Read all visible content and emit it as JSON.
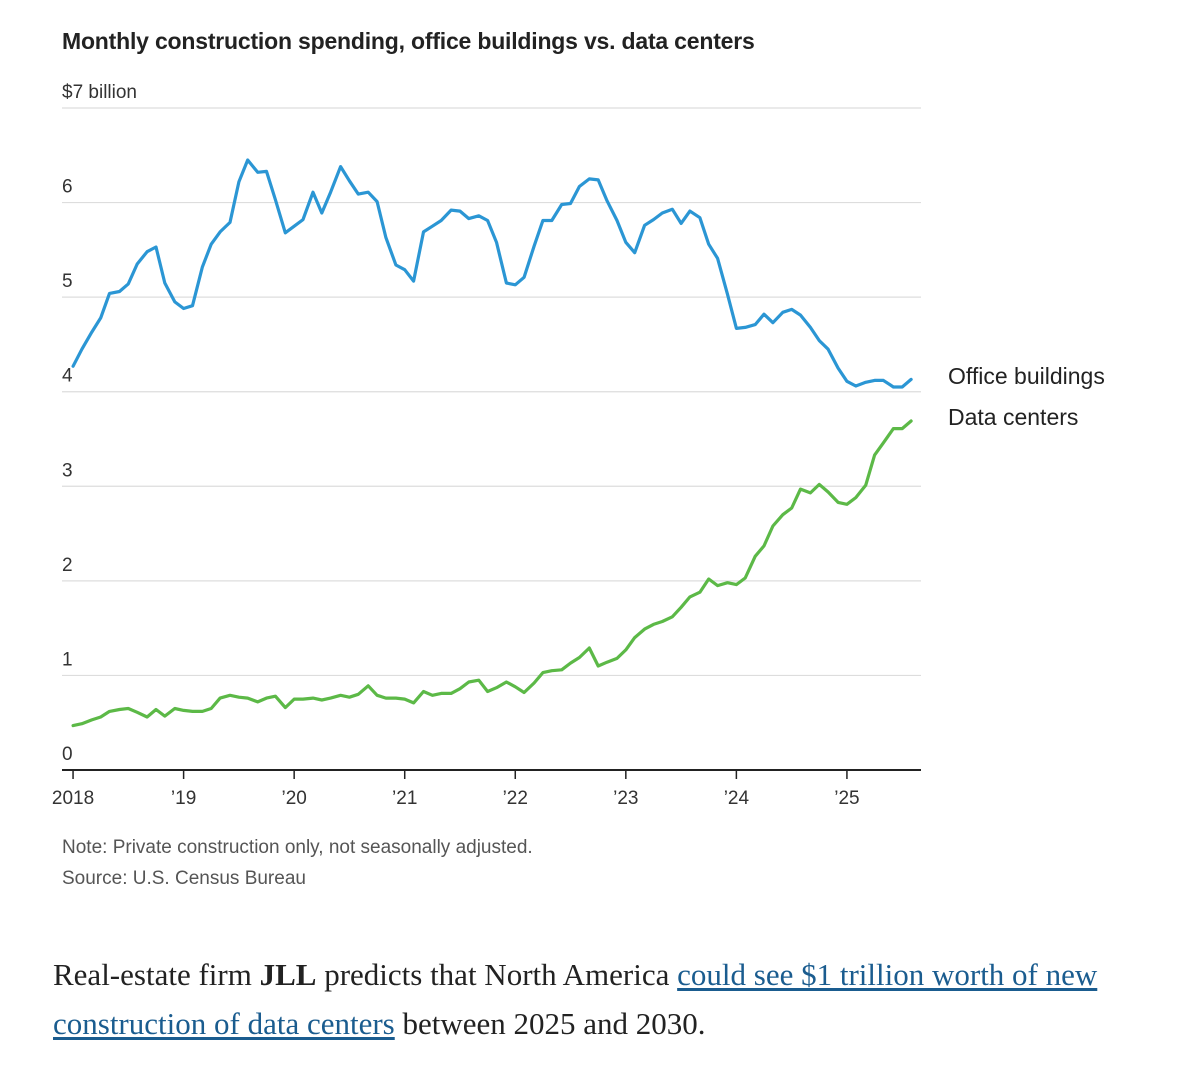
{
  "title": "Monthly construction spending, office buildings vs. data centers",
  "note": "Note: Private construction only, not seasonally adjusted.",
  "source": "Source: U.S. Census Bureau",
  "article": {
    "before": "Real-estate firm ",
    "bold": "JLL",
    "middle": " predicts that North America ",
    "link_text": "could see $1 trillion worth of new construction of data centers",
    "after": " between 2025 and 2030."
  },
  "colors": {
    "office": "#2b96d4",
    "data_centers": "#5cb947",
    "grid": "#dddddd",
    "axis": "#222222",
    "link": "#1a5c8f"
  },
  "chart_data": {
    "type": "line",
    "title": "Monthly construction spending, office buildings vs. data centers",
    "xlabel": "",
    "ylabel": "",
    "ylim": [
      0,
      7
    ],
    "y_ticks": [
      {
        "value": 0,
        "label": "0"
      },
      {
        "value": 1,
        "label": "1"
      },
      {
        "value": 2,
        "label": "2"
      },
      {
        "value": 3,
        "label": "3"
      },
      {
        "value": 4,
        "label": "4"
      },
      {
        "value": 5,
        "label": "5"
      },
      {
        "value": 6,
        "label": "6"
      },
      {
        "value": 7,
        "label": "$7 billion"
      }
    ],
    "x_ticks": [
      {
        "value": 2018,
        "label": "2018"
      },
      {
        "value": 2019,
        "label": "’19"
      },
      {
        "value": 2020,
        "label": "’20"
      },
      {
        "value": 2021,
        "label": "’21"
      },
      {
        "value": 2022,
        "label": "’22"
      },
      {
        "value": 2023,
        "label": "’23"
      },
      {
        "value": 2024,
        "label": "’24"
      },
      {
        "value": 2025,
        "label": "’25"
      }
    ],
    "xlim": [
      2017.9,
      2025.67
    ],
    "grid": true,
    "legend": "direct labels at right end of lines",
    "series": [
      {
        "name": "Office buildings",
        "color": "#2b96d4",
        "points": [
          [
            2018.0,
            4.27
          ],
          [
            2018.08,
            4.45
          ],
          [
            2018.17,
            4.63
          ],
          [
            2018.25,
            4.78
          ],
          [
            2018.33,
            5.04
          ],
          [
            2018.42,
            5.06
          ],
          [
            2018.5,
            5.14
          ],
          [
            2018.58,
            5.35
          ],
          [
            2018.67,
            5.48
          ],
          [
            2018.75,
            5.53
          ],
          [
            2018.83,
            5.15
          ],
          [
            2018.92,
            4.95
          ],
          [
            2019.0,
            4.88
          ],
          [
            2019.08,
            4.91
          ],
          [
            2019.17,
            5.32
          ],
          [
            2019.25,
            5.56
          ],
          [
            2019.33,
            5.69
          ],
          [
            2019.42,
            5.79
          ],
          [
            2019.5,
            6.22
          ],
          [
            2019.58,
            6.45
          ],
          [
            2019.67,
            6.32
          ],
          [
            2019.75,
            6.33
          ],
          [
            2019.83,
            6.03
          ],
          [
            2019.92,
            5.68
          ],
          [
            2020.0,
            5.75
          ],
          [
            2020.08,
            5.82
          ],
          [
            2020.17,
            6.11
          ],
          [
            2020.25,
            5.89
          ],
          [
            2020.33,
            6.11
          ],
          [
            2020.42,
            6.38
          ],
          [
            2020.5,
            6.23
          ],
          [
            2020.58,
            6.09
          ],
          [
            2020.67,
            6.11
          ],
          [
            2020.75,
            6.01
          ],
          [
            2020.83,
            5.63
          ],
          [
            2020.92,
            5.34
          ],
          [
            2021.0,
            5.29
          ],
          [
            2021.08,
            5.17
          ],
          [
            2021.17,
            5.69
          ],
          [
            2021.25,
            5.75
          ],
          [
            2021.33,
            5.81
          ],
          [
            2021.42,
            5.92
          ],
          [
            2021.5,
            5.91
          ],
          [
            2021.58,
            5.83
          ],
          [
            2021.67,
            5.86
          ],
          [
            2021.75,
            5.81
          ],
          [
            2021.83,
            5.58
          ],
          [
            2021.92,
            5.15
          ],
          [
            2022.0,
            5.13
          ],
          [
            2022.08,
            5.21
          ],
          [
            2022.17,
            5.54
          ],
          [
            2022.25,
            5.81
          ],
          [
            2022.33,
            5.81
          ],
          [
            2022.42,
            5.98
          ],
          [
            2022.5,
            5.99
          ],
          [
            2022.58,
            6.17
          ],
          [
            2022.67,
            6.25
          ],
          [
            2022.75,
            6.24
          ],
          [
            2022.83,
            6.02
          ],
          [
            2022.92,
            5.81
          ],
          [
            2023.0,
            5.58
          ],
          [
            2023.08,
            5.47
          ],
          [
            2023.17,
            5.76
          ],
          [
            2023.25,
            5.82
          ],
          [
            2023.33,
            5.89
          ],
          [
            2023.42,
            5.93
          ],
          [
            2023.5,
            5.78
          ],
          [
            2023.58,
            5.91
          ],
          [
            2023.67,
            5.84
          ],
          [
            2023.75,
            5.56
          ],
          [
            2023.83,
            5.41
          ],
          [
            2023.92,
            5.03
          ],
          [
            2024.0,
            4.67
          ],
          [
            2024.08,
            4.68
          ],
          [
            2024.17,
            4.71
          ],
          [
            2024.25,
            4.82
          ],
          [
            2024.33,
            4.73
          ],
          [
            2024.42,
            4.84
          ],
          [
            2024.5,
            4.87
          ],
          [
            2024.58,
            4.81
          ],
          [
            2024.67,
            4.68
          ],
          [
            2024.75,
            4.54
          ],
          [
            2024.83,
            4.45
          ],
          [
            2024.92,
            4.25
          ],
          [
            2025.0,
            4.11
          ],
          [
            2025.08,
            4.06
          ],
          [
            2025.17,
            4.1
          ],
          [
            2025.25,
            4.12
          ],
          [
            2025.33,
            4.12
          ],
          [
            2025.42,
            4.05
          ],
          [
            2025.5,
            4.05
          ],
          [
            2025.58,
            4.13
          ]
        ]
      },
      {
        "name": "Data centers",
        "color": "#5cb947",
        "points": [
          [
            2018.0,
            0.47
          ],
          [
            2018.08,
            0.49
          ],
          [
            2018.17,
            0.53
          ],
          [
            2018.25,
            0.56
          ],
          [
            2018.33,
            0.62
          ],
          [
            2018.42,
            0.64
          ],
          [
            2018.5,
            0.65
          ],
          [
            2018.58,
            0.61
          ],
          [
            2018.67,
            0.56
          ],
          [
            2018.75,
            0.64
          ],
          [
            2018.83,
            0.57
          ],
          [
            2018.92,
            0.65
          ],
          [
            2019.0,
            0.63
          ],
          [
            2019.08,
            0.62
          ],
          [
            2019.17,
            0.62
          ],
          [
            2019.25,
            0.65
          ],
          [
            2019.33,
            0.76
          ],
          [
            2019.42,
            0.79
          ],
          [
            2019.5,
            0.77
          ],
          [
            2019.58,
            0.76
          ],
          [
            2019.67,
            0.72
          ],
          [
            2019.75,
            0.76
          ],
          [
            2019.83,
            0.78
          ],
          [
            2019.92,
            0.66
          ],
          [
            2020.0,
            0.75
          ],
          [
            2020.08,
            0.75
          ],
          [
            2020.17,
            0.76
          ],
          [
            2020.25,
            0.74
          ],
          [
            2020.33,
            0.76
          ],
          [
            2020.42,
            0.79
          ],
          [
            2020.5,
            0.77
          ],
          [
            2020.58,
            0.8
          ],
          [
            2020.67,
            0.89
          ],
          [
            2020.75,
            0.79
          ],
          [
            2020.83,
            0.76
          ],
          [
            2020.92,
            0.76
          ],
          [
            2021.0,
            0.75
          ],
          [
            2021.08,
            0.71
          ],
          [
            2021.17,
            0.83
          ],
          [
            2021.25,
            0.79
          ],
          [
            2021.33,
            0.81
          ],
          [
            2021.42,
            0.81
          ],
          [
            2021.5,
            0.86
          ],
          [
            2021.58,
            0.93
          ],
          [
            2021.67,
            0.95
          ],
          [
            2021.75,
            0.83
          ],
          [
            2021.83,
            0.87
          ],
          [
            2021.92,
            0.93
          ],
          [
            2022.0,
            0.88
          ],
          [
            2022.08,
            0.82
          ],
          [
            2022.17,
            0.92
          ],
          [
            2022.25,
            1.03
          ],
          [
            2022.33,
            1.05
          ],
          [
            2022.42,
            1.06
          ],
          [
            2022.5,
            1.13
          ],
          [
            2022.58,
            1.19
          ],
          [
            2022.67,
            1.29
          ],
          [
            2022.75,
            1.1
          ],
          [
            2022.83,
            1.14
          ],
          [
            2022.92,
            1.18
          ],
          [
            2023.0,
            1.27
          ],
          [
            2023.08,
            1.4
          ],
          [
            2023.17,
            1.49
          ],
          [
            2023.25,
            1.54
          ],
          [
            2023.33,
            1.57
          ],
          [
            2023.42,
            1.62
          ],
          [
            2023.5,
            1.72
          ],
          [
            2023.58,
            1.83
          ],
          [
            2023.67,
            1.88
          ],
          [
            2023.75,
            2.02
          ],
          [
            2023.83,
            1.95
          ],
          [
            2023.92,
            1.98
          ],
          [
            2024.0,
            1.96
          ],
          [
            2024.08,
            2.03
          ],
          [
            2024.17,
            2.26
          ],
          [
            2024.25,
            2.37
          ],
          [
            2024.33,
            2.58
          ],
          [
            2024.42,
            2.7
          ],
          [
            2024.5,
            2.77
          ],
          [
            2024.58,
            2.97
          ],
          [
            2024.67,
            2.93
          ],
          [
            2024.75,
            3.02
          ],
          [
            2024.83,
            2.94
          ],
          [
            2024.92,
            2.83
          ],
          [
            2025.0,
            2.81
          ],
          [
            2025.08,
            2.88
          ],
          [
            2025.17,
            3.01
          ],
          [
            2025.25,
            3.33
          ],
          [
            2025.33,
            3.46
          ],
          [
            2025.42,
            3.61
          ],
          [
            2025.5,
            3.61
          ],
          [
            2025.58,
            3.69
          ]
        ]
      }
    ]
  }
}
